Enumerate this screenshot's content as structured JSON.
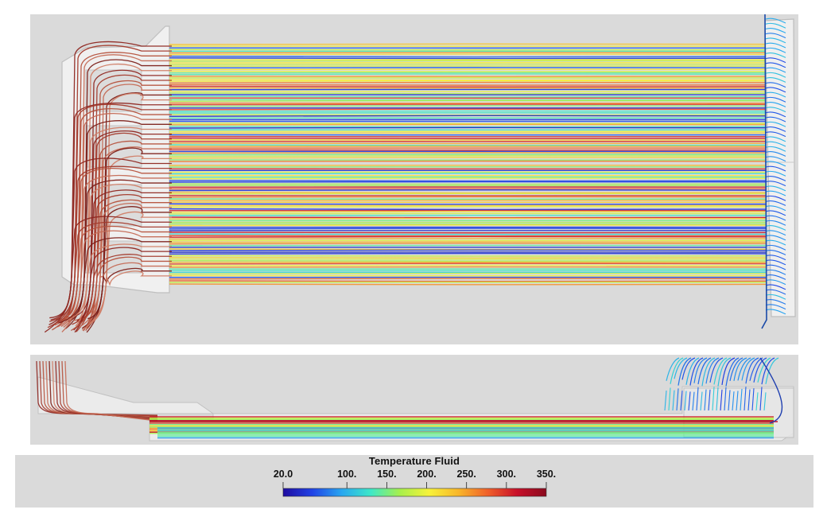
{
  "colorbar": {
    "title": "Temperature Fluid",
    "min": 20.0,
    "max": 350.0,
    "ticks": [
      {
        "value": 20.0,
        "label": "20.0"
      },
      {
        "value": 100,
        "label": "100."
      },
      {
        "value": 150,
        "label": "150."
      },
      {
        "value": 200,
        "label": "200."
      },
      {
        "value": 250,
        "label": "250."
      },
      {
        "value": 300,
        "label": "300."
      },
      {
        "value": 350,
        "label": "350."
      }
    ],
    "colormap": [
      "#1f0ba0",
      "#2043e6",
      "#28a6f0",
      "#3ee8c8",
      "#a8f04c",
      "#f7f23a",
      "#f8b62a",
      "#f0602a",
      "#c8102a",
      "#8a0a1e"
    ]
  },
  "colors": {
    "background": "#dadada",
    "housing": "#f4f4f4",
    "housing_edge": "#b9b9b9",
    "inlet_hot": "#9a2b22"
  }
}
